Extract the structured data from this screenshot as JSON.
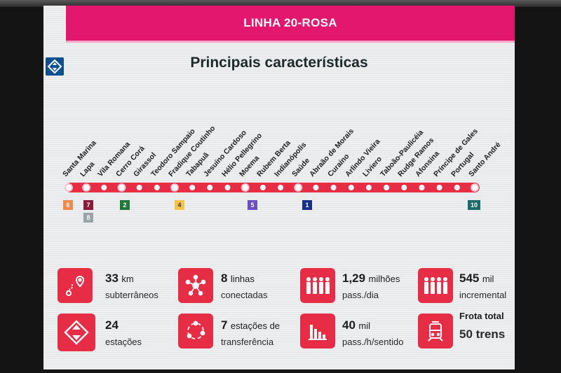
{
  "header": {
    "title": "LINHA 20-ROSA"
  },
  "slide": {
    "subtitle": "Principais características"
  },
  "colors": {
    "accent": "#e4176f",
    "line": "#e62d45",
    "logo": "#0a4f8f"
  },
  "stations": [
    "Santa Marina",
    "Lapa",
    "Vila Romana",
    "Cerro Corá",
    "Girassol",
    "Teodoro Sampaio",
    "Fradique Coutinho",
    "Tabapuã",
    "Jesuíno Cardoso",
    "Hélio Pellegrino",
    "Moema",
    "Rubem Berta",
    "Indianópolis",
    "Saúde",
    "Abraão de Morais",
    "Curaíno",
    "Arlindo Vieira",
    "Liviero",
    "Taboão-Paulicéia",
    "Rudge Ramos",
    "Afonsina",
    "Príncipe de Gales",
    "Portugal",
    "Santo André"
  ],
  "transfers": [
    {
      "label": "6",
      "color": "#f08a4b"
    },
    {
      "label": "7",
      "color": "#8a1a3c"
    },
    {
      "label": "8",
      "color": "#9aa3a8"
    },
    {
      "label": "2",
      "color": "#1f7a3a"
    },
    {
      "label": "4",
      "color": "#f5c24a"
    },
    {
      "label": "5",
      "color": "#6a4fc0"
    },
    {
      "label": "1",
      "color": "#1a2f8a"
    },
    {
      "label": "10",
      "color": "#1b6b6b"
    }
  ],
  "stats": [
    {
      "main_value": "33",
      "main_unit": "km",
      "sub": "subterrâneos",
      "icon": "route-icon"
    },
    {
      "main_value": "8",
      "main_unit": "linhas",
      "sub": "conectadas",
      "icon": "network-icon"
    },
    {
      "main_value": "1,29",
      "main_unit": "milhões",
      "sub": "pass./dia",
      "icon": "people-icon"
    },
    {
      "main_value": "545",
      "main_unit": "mil",
      "sub": "incremental",
      "icon": "people-icon"
    },
    {
      "main_value": "24",
      "main_unit": "",
      "sub": "estações",
      "icon": "metro-logo-icon"
    },
    {
      "main_value": "7",
      "main_unit": "estações de",
      "sub": "transferência",
      "icon": "transfer-cycle-icon"
    },
    {
      "main_value": "40",
      "main_unit": "mil",
      "sub": "pass./h/sentido",
      "icon": "bar-chart-icon"
    },
    {
      "main_value": "Frota total",
      "main_unit": "",
      "sub": "50 trens",
      "icon": "train-icon"
    }
  ]
}
